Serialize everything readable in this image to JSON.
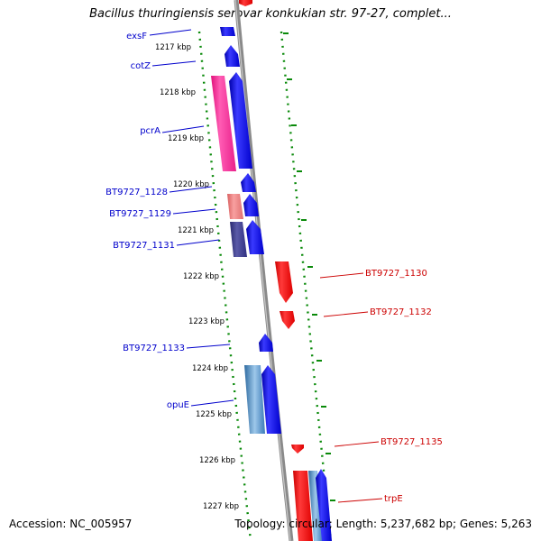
{
  "title": "Bacillus thuringiensis serovar konkukian str. 97-27, complet...",
  "footer": {
    "accession": "Accession: NC_005957",
    "summary": "Topology: circular; Length: 5,237,682 bp; Genes: 5,263"
  },
  "colors": {
    "backbone": "#8a8a8a",
    "tick": "#0a8a0a",
    "forward_label": "#0000cc",
    "reverse_label": "#cc0000",
    "forward_gene": "#0000ff",
    "reverse_gene": "#ff0000",
    "magenta_gene": "#ff2fa0",
    "light_red_gene": "#f08080",
    "navy_gene": "#3c3c8c",
    "steel_gene": "#4682b4"
  },
  "ticks": [
    {
      "kbp": 1217,
      "label": "1217 kbp"
    },
    {
      "kbp": 1218,
      "label": "1218 kbp"
    },
    {
      "kbp": 1219,
      "label": "1219 kbp"
    },
    {
      "kbp": 1220,
      "label": "1220 kbp"
    },
    {
      "kbp": 1221,
      "label": "1221 kbp"
    },
    {
      "kbp": 1222,
      "label": "1222 kbp"
    },
    {
      "kbp": 1223,
      "label": "1223 kbp"
    },
    {
      "kbp": 1224,
      "label": "1224 kbp"
    },
    {
      "kbp": 1225,
      "label": "1225 kbp"
    },
    {
      "kbp": 1226,
      "label": "1226 kbp"
    },
    {
      "kbp": 1227,
      "label": "1227 kbp"
    }
  ],
  "forward_labels": [
    "exsF",
    "cotZ",
    "pcrA",
    "BT9727_1128",
    "BT9727_1129",
    "BT9727_1131",
    "BT9727_1133",
    "opuE"
  ],
  "reverse_labels": [
    "BT9727_1130",
    "BT9727_1132",
    "BT9727_1135",
    "trpE"
  ]
}
